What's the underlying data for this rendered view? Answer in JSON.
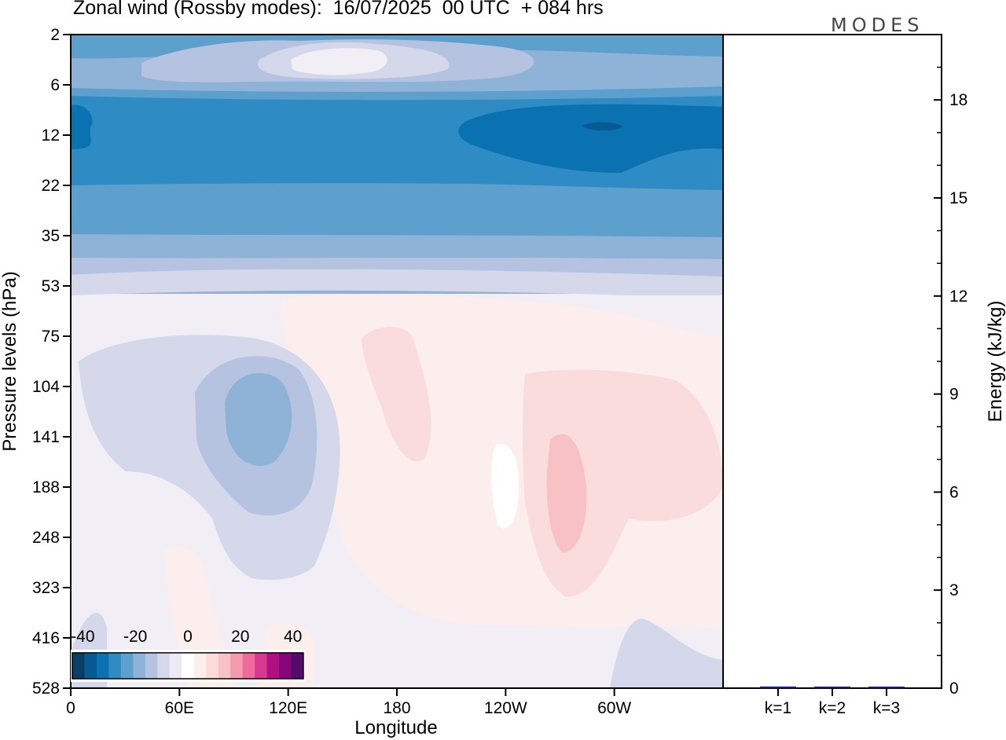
{
  "header": {
    "title": "Zonal wind (Rossby modes):  16/07/2025  00 UTC  + 084 hrs",
    "logo": "MODES"
  },
  "chart_data": [
    {
      "type": "heatmap",
      "title": "Zonal wind (Rossby modes):  16/07/2025  00 UTC  + 084 hrs",
      "xlabel": "Longitude",
      "ylabel": "Pressure levels (hPa)",
      "x_ticks": [
        "0",
        "60E",
        "120E",
        "180",
        "120W",
        "60W"
      ],
      "y_ticks": [
        "2",
        "6",
        "12",
        "22",
        "35",
        "53",
        "75",
        "104",
        "141",
        "188",
        "248",
        "323",
        "416",
        "528"
      ],
      "y_scale": "log-pressure, inverted",
      "colorbar": {
        "labels": [
          "-40",
          "-20",
          "0",
          "20",
          "40"
        ],
        "range": [
          -44,
          44
        ],
        "step": 4,
        "colors": [
          "#0c3d63",
          "#085a92",
          "#0a72b0",
          "#2f8bc4",
          "#5d9fcd",
          "#8fb2d7",
          "#b6c3e0",
          "#d5d8ea",
          "#ece9f3",
          "#ffffff",
          "#fdeeee",
          "#fbdcdd",
          "#f8c1c6",
          "#f49bb0",
          "#ee6b9d",
          "#d8398f",
          "#b01080",
          "#84067a",
          "#560a6c"
        ]
      },
      "field_description_levels": {
        "2": "weak easterly -10 to -20 with a calm core near 180",
        "6-35": "strong easterly -25 to -45, strongest near 12 hPa",
        "53-528": "weak westerly/easterly -12 to +15 with pockets"
      }
    },
    {
      "type": "bar",
      "categories": [
        "k=1",
        "k=2",
        "k=3"
      ],
      "values": [
        0.05,
        0.02,
        0.01
      ],
      "ylabel": "Energy (kJ/kg)",
      "y_ticks": [
        "0",
        "3",
        "6",
        "9",
        "12",
        "15",
        "18"
      ],
      "ylim": [
        0,
        20
      ],
      "bar_color": "#1a1a8c"
    }
  ]
}
